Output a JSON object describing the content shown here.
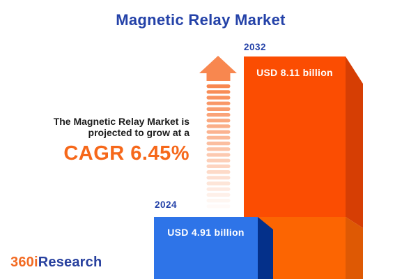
{
  "page": {
    "title": "Magnetic Relay Market"
  },
  "annotation": {
    "line1": "The Magnetic Relay Market is",
    "line2": "projected to grow at a",
    "cagr_label": "CAGR 6.45%"
  },
  "logo": {
    "part1": "360i",
    "part2": "Research"
  },
  "colors": {
    "title_blue": "#2442A8",
    "body_text": "#1C1C1C",
    "cagr_orange": "#F6681A",
    "bar_2032_front": "#FB4D02",
    "bar_2032_front_lower": "#FC6502",
    "bar_2032_side": "#D63E04",
    "bar_2032_side_lower": "#DE5904",
    "bar_2024_front": "#2E74E8",
    "bar_2024_side": "#04308A",
    "arrow": "#F8874F",
    "logo_orange": "#F26A22",
    "logo_blue": "#27409E",
    "background": "#FFFFFF"
  },
  "chart_data": {
    "type": "bar",
    "title": "Magnetic Relay Market",
    "categories": [
      "2024",
      "2032"
    ],
    "values": [
      4.91,
      8.11
    ],
    "unit": "USD billion",
    "bar_labels": [
      "USD 4.91 billion",
      "USD 8.11 billion"
    ],
    "cagr_percent": 6.45,
    "orientation": "vertical",
    "style": "3d-infographic",
    "legend": false,
    "grid": false,
    "bar_colors": [
      "#2E74E8",
      "#FB4D02"
    ],
    "annotation": "The Magnetic Relay Market is projected to grow at a CAGR 6.45%"
  }
}
